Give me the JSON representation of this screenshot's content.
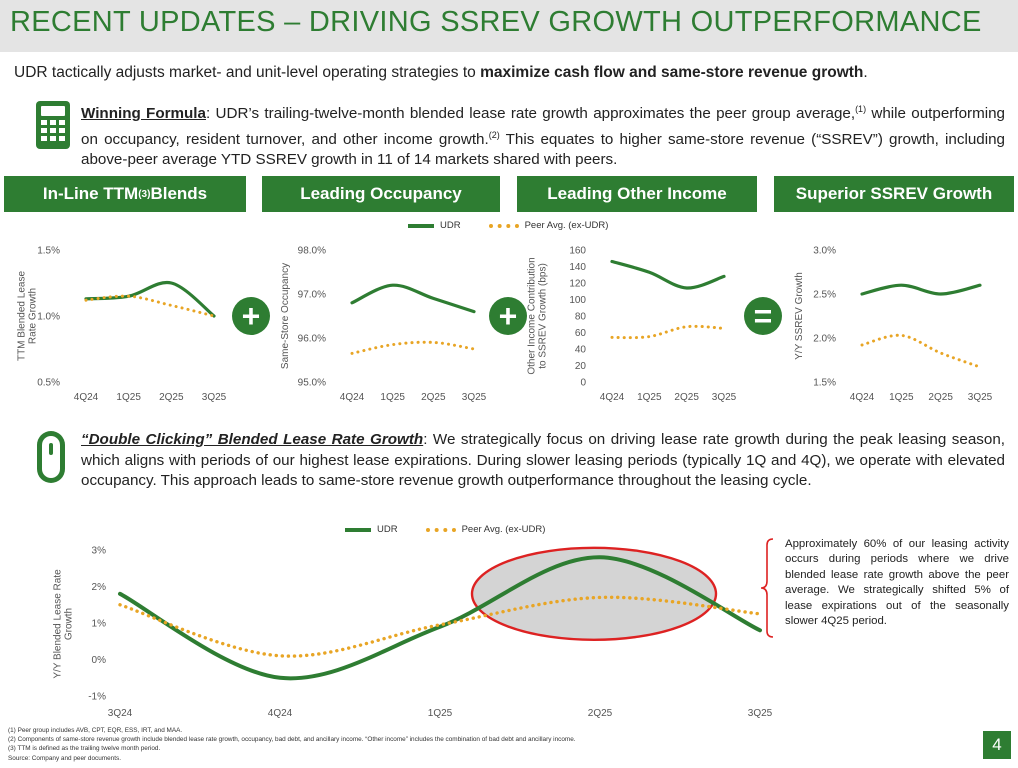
{
  "title": "RECENT UPDATES – DRIVING SSREV GROWTH OUTPERFORMANCE",
  "intro": {
    "prefix": "UDR tactically adjusts market- and unit-level operating strategies to ",
    "bold": "maximize cash flow and same-store revenue growth",
    "suffix": "."
  },
  "winning": {
    "lead": "Winning Formula",
    "t1": ": UDR’s trailing-twelve-month blended lease rate growth approximates the peer group average,",
    "sup1": "(1)",
    "t2": " while outperforming on occupancy, resident turnover, and other income growth.",
    "sup2": "(2)",
    "t3": " This equates to higher same-store revenue (“SSREV”) growth, including above-peer average YTD SSREV growth in 11 of 14 markets shared with peers."
  },
  "banners": {
    "b1_pre": "In-Line TTM",
    "b1_sup": "(3)",
    "b1_post": " Blends",
    "b2": "Leading Occupancy",
    "b3": "Leading Other Income",
    "b4": "Superior SSREV Growth"
  },
  "legend": {
    "udr": "UDR",
    "peer": "Peer Avg. (ex-UDR)"
  },
  "operators": {
    "plus1": "+",
    "plus2": "+",
    "equals": "="
  },
  "colors": {
    "green": "#2e7d32",
    "peer": "#e8a525",
    "title_bg": "#e4e4e4",
    "ellipse_stroke": "#dd2222"
  },
  "icons": {
    "calculator": "calculator-icon",
    "mouse": "mouse-icon"
  },
  "chart_data": [
    {
      "type": "line",
      "title": "In-Line TTM Blends",
      "ylabel": "TTM Blended Lease Rate Growth",
      "categories": [
        "4Q24",
        "1Q25",
        "2Q25",
        "3Q25"
      ],
      "ylim": [
        0.5,
        1.5
      ],
      "yticks": [
        "0.5%",
        "1.0%",
        "1.5%"
      ],
      "series": [
        {
          "name": "UDR",
          "values": [
            1.13,
            1.15,
            1.25,
            1.0
          ]
        },
        {
          "name": "Peer Avg. (ex-UDR)",
          "values": [
            1.12,
            1.15,
            1.08,
            1.0
          ]
        }
      ]
    },
    {
      "type": "line",
      "title": "Leading Occupancy",
      "ylabel": "Same-Store Occupancy",
      "categories": [
        "4Q24",
        "1Q25",
        "2Q25",
        "3Q25"
      ],
      "ylim": [
        95.0,
        98.0
      ],
      "yticks": [
        "95.0%",
        "96.0%",
        "97.0%",
        "98.0%"
      ],
      "series": [
        {
          "name": "UDR",
          "values": [
            96.8,
            97.2,
            96.9,
            96.6
          ]
        },
        {
          "name": "Peer Avg. (ex-UDR)",
          "values": [
            95.65,
            95.85,
            95.9,
            95.75
          ]
        }
      ]
    },
    {
      "type": "line",
      "title": "Leading Other Income",
      "ylabel": "Other Income Contribution to SSREV Growth (bps)",
      "categories": [
        "4Q24",
        "1Q25",
        "2Q25",
        "3Q25"
      ],
      "ylim": [
        0,
        160
      ],
      "yticks": [
        "0",
        "20",
        "40",
        "60",
        "80",
        "100",
        "120",
        "140",
        "160"
      ],
      "series": [
        {
          "name": "UDR",
          "values": [
            146,
            133,
            114,
            128
          ]
        },
        {
          "name": "Peer Avg. (ex-UDR)",
          "values": [
            54,
            55,
            67,
            65
          ]
        }
      ]
    },
    {
      "type": "line",
      "title": "Superior SSREV Growth",
      "ylabel": "Y/Y SSREV Growth",
      "categories": [
        "4Q24",
        "1Q25",
        "2Q25",
        "3Q25"
      ],
      "ylim": [
        1.5,
        3.0
      ],
      "yticks": [
        "1.5%",
        "2.0%",
        "2.5%",
        "3.0%"
      ],
      "series": [
        {
          "name": "UDR",
          "values": [
            2.5,
            2.6,
            2.5,
            2.6
          ]
        },
        {
          "name": "Peer Avg. (ex-UDR)",
          "values": [
            1.92,
            2.03,
            1.83,
            1.67
          ]
        }
      ]
    },
    {
      "type": "line",
      "title": "Double Clicking Blended Lease Rate Growth",
      "ylabel": "Y/Y Blended Lease Rate Growth",
      "categories": [
        "3Q24",
        "4Q24",
        "1Q25",
        "2Q25",
        "3Q25"
      ],
      "ylim": [
        -1,
        3
      ],
      "yticks": [
        "-1%",
        "0%",
        "1%",
        "2%",
        "3%"
      ],
      "series": [
        {
          "name": "UDR",
          "values": [
            1.8,
            -0.5,
            0.9,
            2.8,
            0.8
          ]
        },
        {
          "name": "Peer Avg. (ex-UDR)",
          "values": [
            1.5,
            0.1,
            0.95,
            1.7,
            1.25
          ]
        }
      ]
    }
  ],
  "double": {
    "lead": "“Double Clicking” Blended Lease Rate Growth",
    "text": ": We strategically focus on driving lease rate growth during the peak leasing season, which aligns with periods of our highest lease expirations. During slower leasing periods (typically 1Q and 4Q), we operate with elevated occupancy. This approach leads to same-store revenue growth outperformance throughout the leasing cycle."
  },
  "annotation": "Approximately 60% of our leasing activity occurs during periods where we drive blended lease rate growth above the peer average. We strategically shifted 5% of lease expirations out of the seasonally slower 4Q25 period.",
  "footnotes": {
    "f1": "(1)     Peer group includes AVB, CPT, EQR, ESS, IRT, and MAA.",
    "f2": "(2)     Components of same-store revenue growth include blended lease rate growth, occupancy, bad debt, and ancillary income. “Other income” includes the combination of bad debt and ancillary income.",
    "f3": "(3)     TTM is defined as the trailing twelve month period.",
    "source": "Source:  Company and peer documents."
  },
  "page_number": "4"
}
